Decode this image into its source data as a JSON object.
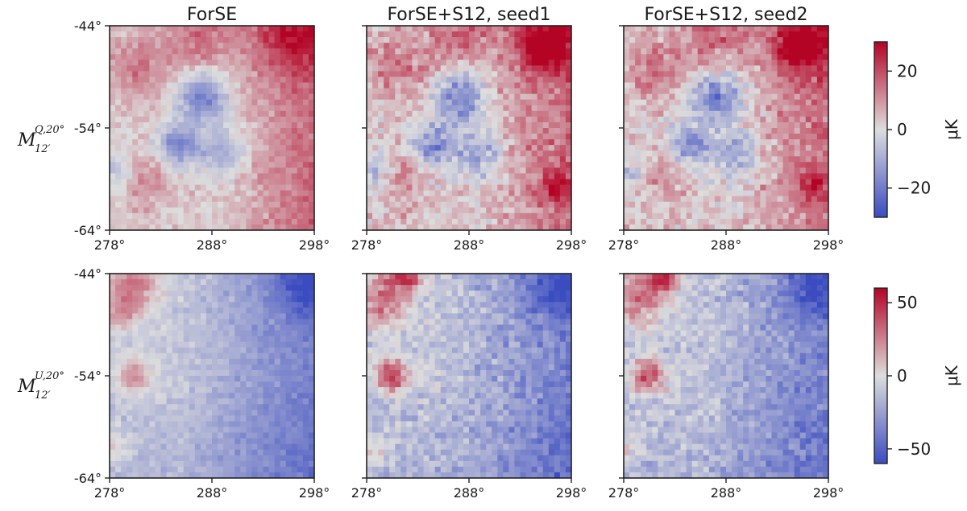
{
  "figure": {
    "column_titles": [
      "ForSE",
      "ForSE+S12, seed1",
      "ForSE+S12, seed2"
    ],
    "row_labels": [
      {
        "base": "M",
        "sup": "Q,20°",
        "sub": "12′"
      },
      {
        "base": "M",
        "sup": "U,20°",
        "sub": "12′"
      }
    ]
  },
  "chart_data": {
    "type": "heatmap",
    "x_ticks": [
      {
        "value": 278,
        "label": "278°"
      },
      {
        "value": 288,
        "label": "288°"
      },
      {
        "value": 298,
        "label": "298°"
      }
    ],
    "y_ticks": [
      {
        "value": -44,
        "label": "-44°"
      },
      {
        "value": -54,
        "label": "-54°"
      },
      {
        "value": -64,
        "label": "-64°"
      }
    ],
    "xlim": [
      278,
      298
    ],
    "ylim": [
      -64,
      -44
    ],
    "colormap": "coolwarm",
    "colormap_stops": [
      "#3b4cc0",
      "#dddddd",
      "#b40426"
    ],
    "panels": [
      {
        "row": 0,
        "column": 0,
        "title": "ForSE"
      },
      {
        "row": 0,
        "column": 1,
        "title": "ForSE+S12, seed1"
      },
      {
        "row": 0,
        "column": 2,
        "title": "ForSE+S12, seed2"
      },
      {
        "row": 1,
        "column": 0,
        "title": "ForSE"
      },
      {
        "row": 1,
        "column": 1,
        "title": "ForSE+S12, seed1"
      },
      {
        "row": 1,
        "column": 2,
        "title": "ForSE+S12, seed2"
      }
    ],
    "colorbars": [
      {
        "row": 0,
        "label": "μK",
        "range": [
          -30,
          30
        ],
        "ticks": [
          {
            "value": 20,
            "label": "20"
          },
          {
            "value": 0,
            "label": "0"
          },
          {
            "value": -20,
            "label": "−20"
          }
        ]
      },
      {
        "row": 1,
        "label": "μK",
        "range": [
          -60,
          60
        ],
        "ticks": [
          {
            "value": 50,
            "label": "50"
          },
          {
            "value": 0,
            "label": "0"
          },
          {
            "value": -50,
            "label": "−50"
          }
        ]
      }
    ]
  }
}
